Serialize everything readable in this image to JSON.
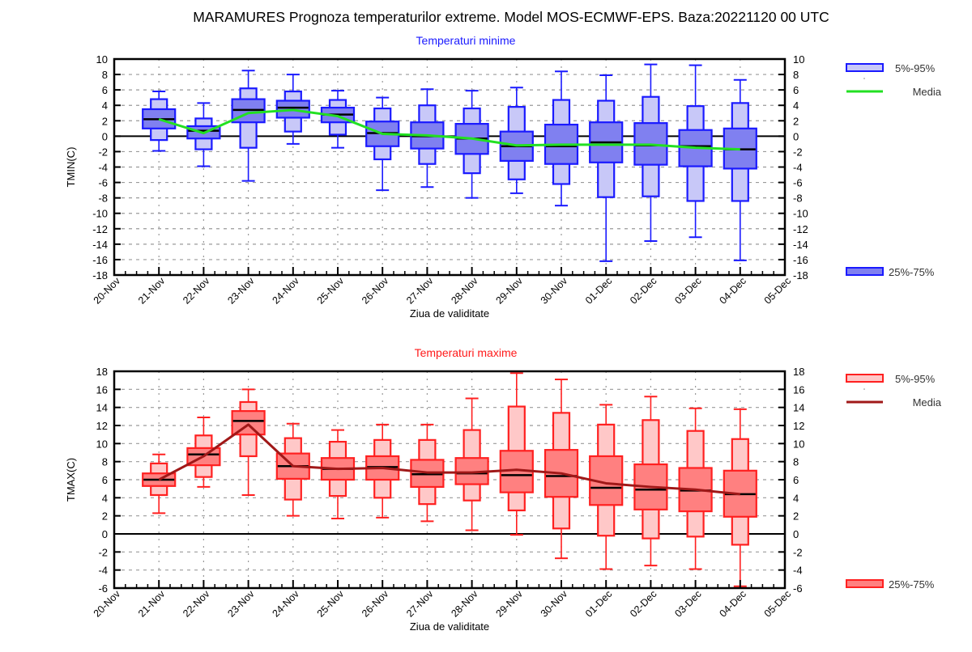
{
  "main_title": "MARAMURES  Prognoza temperaturilor extreme.  Model MOS-ECMWF-EPS. Baza:20221120 00 UTC",
  "chart_data": [
    {
      "type": "boxplot",
      "title": "Temperaturi minime",
      "title_color": "#1a1aff",
      "xlabel": "Ziua de validitate",
      "ylabel": "TMIN(C)",
      "ylim": [
        -18,
        10
      ],
      "yticks": [
        10,
        8,
        6,
        4,
        2,
        0,
        -2,
        -4,
        -6,
        -8,
        -10,
        -12,
        -14,
        -16,
        -18
      ],
      "x_tick_labels": [
        "20-Nov",
        "21-Nov",
        "22-Nov",
        "23-Nov",
        "24-Nov",
        "25-Nov",
        "26-Nov",
        "27-Nov",
        "28-Nov",
        "29-Nov",
        "30-Nov",
        "01-Dec",
        "02-Dec",
        "03-Dec",
        "04-Dec",
        "05-Dec"
      ],
      "grid": true,
      "colors": {
        "outline": "#1a1aff",
        "box_inner": "#c8c8f8",
        "box_outer": "#8080f0",
        "mean_line": "#22e022",
        "median": "#000000"
      },
      "legend": {
        "placement": "right",
        "items": [
          {
            "label": "5%-95%",
            "kind": "box_inner"
          },
          {
            "label": "Media",
            "kind": "mean_line"
          },
          {
            "label": "25%-75%",
            "kind": "box_outer"
          }
        ]
      },
      "categories": [
        "21-Nov",
        "22-Nov",
        "23-Nov",
        "24-Nov",
        "25-Nov",
        "26-Nov",
        "27-Nov",
        "28-Nov",
        "29-Nov",
        "30-Nov",
        "01-Dec",
        "02-Dec",
        "03-Dec",
        "04-Dec"
      ],
      "min": [
        -1.9,
        -3.9,
        -5.8,
        -1.0,
        -1.5,
        -7.0,
        -6.6,
        -8.0,
        -7.4,
        -9.0,
        -16.2,
        -13.6,
        -13.1,
        -16.1
      ],
      "p5": [
        -0.5,
        -1.7,
        -1.5,
        0.6,
        0.2,
        -3.0,
        -3.6,
        -4.8,
        -5.6,
        -6.2,
        -7.9,
        -7.8,
        -8.4,
        -8.4
      ],
      "p25": [
        1.0,
        -0.3,
        1.8,
        2.4,
        1.8,
        -1.3,
        -1.6,
        -2.3,
        -3.2,
        -3.6,
        -3.4,
        -3.7,
        -3.9,
        -4.2
      ],
      "median": [
        2.2,
        0.7,
        3.4,
        3.7,
        2.8,
        0.4,
        0.0,
        -0.3,
        -1.3,
        -1.3,
        -0.8,
        -1.2,
        -1.3,
        -1.7
      ],
      "p75": [
        3.5,
        1.3,
        4.8,
        4.6,
        3.7,
        1.9,
        1.8,
        1.6,
        0.6,
        1.5,
        1.8,
        1.7,
        0.8,
        1.0
      ],
      "p95": [
        4.8,
        2.3,
        6.2,
        5.8,
        4.7,
        3.6,
        4.0,
        3.6,
        3.8,
        4.7,
        4.6,
        5.1,
        3.9,
        4.3
      ],
      "max": [
        5.8,
        4.3,
        8.5,
        8.0,
        5.9,
        5.0,
        6.1,
        5.9,
        6.3,
        8.4,
        7.9,
        9.3,
        9.2,
        7.3
      ],
      "mean": [
        2.2,
        0.4,
        3.0,
        3.4,
        2.6,
        0.3,
        0.1,
        -0.3,
        -1.2,
        -1.1,
        -1.1,
        -1.1,
        -1.5,
        -1.7
      ]
    },
    {
      "type": "boxplot",
      "title": "Temperaturi maxime",
      "title_color": "#ff1a1a",
      "xlabel": "Ziua de validitate",
      "ylabel": "TMAX(C)",
      "ylim": [
        -6,
        18
      ],
      "yticks": [
        18,
        16,
        14,
        12,
        10,
        8,
        6,
        4,
        2,
        0,
        -2,
        -4,
        -6
      ],
      "x_tick_labels": [
        "20-Nov",
        "21-Nov",
        "22-Nov",
        "23-Nov",
        "24-Nov",
        "25-Nov",
        "26-Nov",
        "27-Nov",
        "28-Nov",
        "29-Nov",
        "30-Nov",
        "01-Dec",
        "02-Dec",
        "03-Dec",
        "04-Dec",
        "05-Dec"
      ],
      "grid": true,
      "colors": {
        "outline": "#ff2020",
        "box_inner": "#ffc8c8",
        "box_outer": "#ff8080",
        "mean_line": "#a01818",
        "median": "#000000"
      },
      "legend": {
        "placement": "right",
        "items": [
          {
            "label": "5%-95%",
            "kind": "box_inner"
          },
          {
            "label": "Media",
            "kind": "mean_line"
          },
          {
            "label": "25%-75%",
            "kind": "box_outer"
          }
        ]
      },
      "categories": [
        "21-Nov",
        "22-Nov",
        "23-Nov",
        "24-Nov",
        "25-Nov",
        "26-Nov",
        "27-Nov",
        "28-Nov",
        "29-Nov",
        "30-Nov",
        "01-Dec",
        "02-Dec",
        "03-Dec",
        "04-Dec"
      ],
      "min": [
        2.3,
        5.2,
        4.3,
        2.0,
        1.7,
        1.8,
        1.4,
        0.4,
        -0.1,
        -2.7,
        -3.9,
        -3.5,
        -3.9,
        -5.8
      ],
      "p5": [
        4.3,
        6.3,
        8.6,
        3.8,
        4.2,
        4.0,
        3.3,
        3.7,
        2.6,
        0.6,
        -0.2,
        -0.5,
        -0.3,
        -1.2
      ],
      "p25": [
        5.3,
        7.6,
        11.0,
        6.1,
        6.0,
        6.0,
        5.2,
        5.5,
        4.6,
        4.1,
        3.2,
        2.7,
        2.5,
        1.9
      ],
      "median": [
        6.0,
        8.8,
        12.5,
        7.5,
        7.2,
        7.4,
        6.6,
        6.7,
        6.5,
        6.4,
        5.1,
        4.9,
        4.8,
        4.4
      ],
      "p75": [
        6.7,
        9.5,
        13.6,
        8.9,
        8.4,
        8.6,
        8.2,
        8.4,
        9.2,
        9.3,
        8.6,
        7.7,
        7.3,
        7.0
      ],
      "p95": [
        7.8,
        10.9,
        14.6,
        10.6,
        10.2,
        10.4,
        10.4,
        11.5,
        14.1,
        13.4,
        12.1,
        12.6,
        11.4,
        10.5
      ],
      "max": [
        8.8,
        12.9,
        16.0,
        12.2,
        11.5,
        12.1,
        12.1,
        15.0,
        17.8,
        17.1,
        14.3,
        15.2,
        13.9,
        13.8
      ],
      "mean": [
        6.0,
        8.6,
        12.1,
        7.5,
        7.2,
        7.3,
        6.8,
        6.8,
        7.1,
        6.7,
        5.6,
        5.2,
        4.9,
        4.4
      ]
    }
  ]
}
